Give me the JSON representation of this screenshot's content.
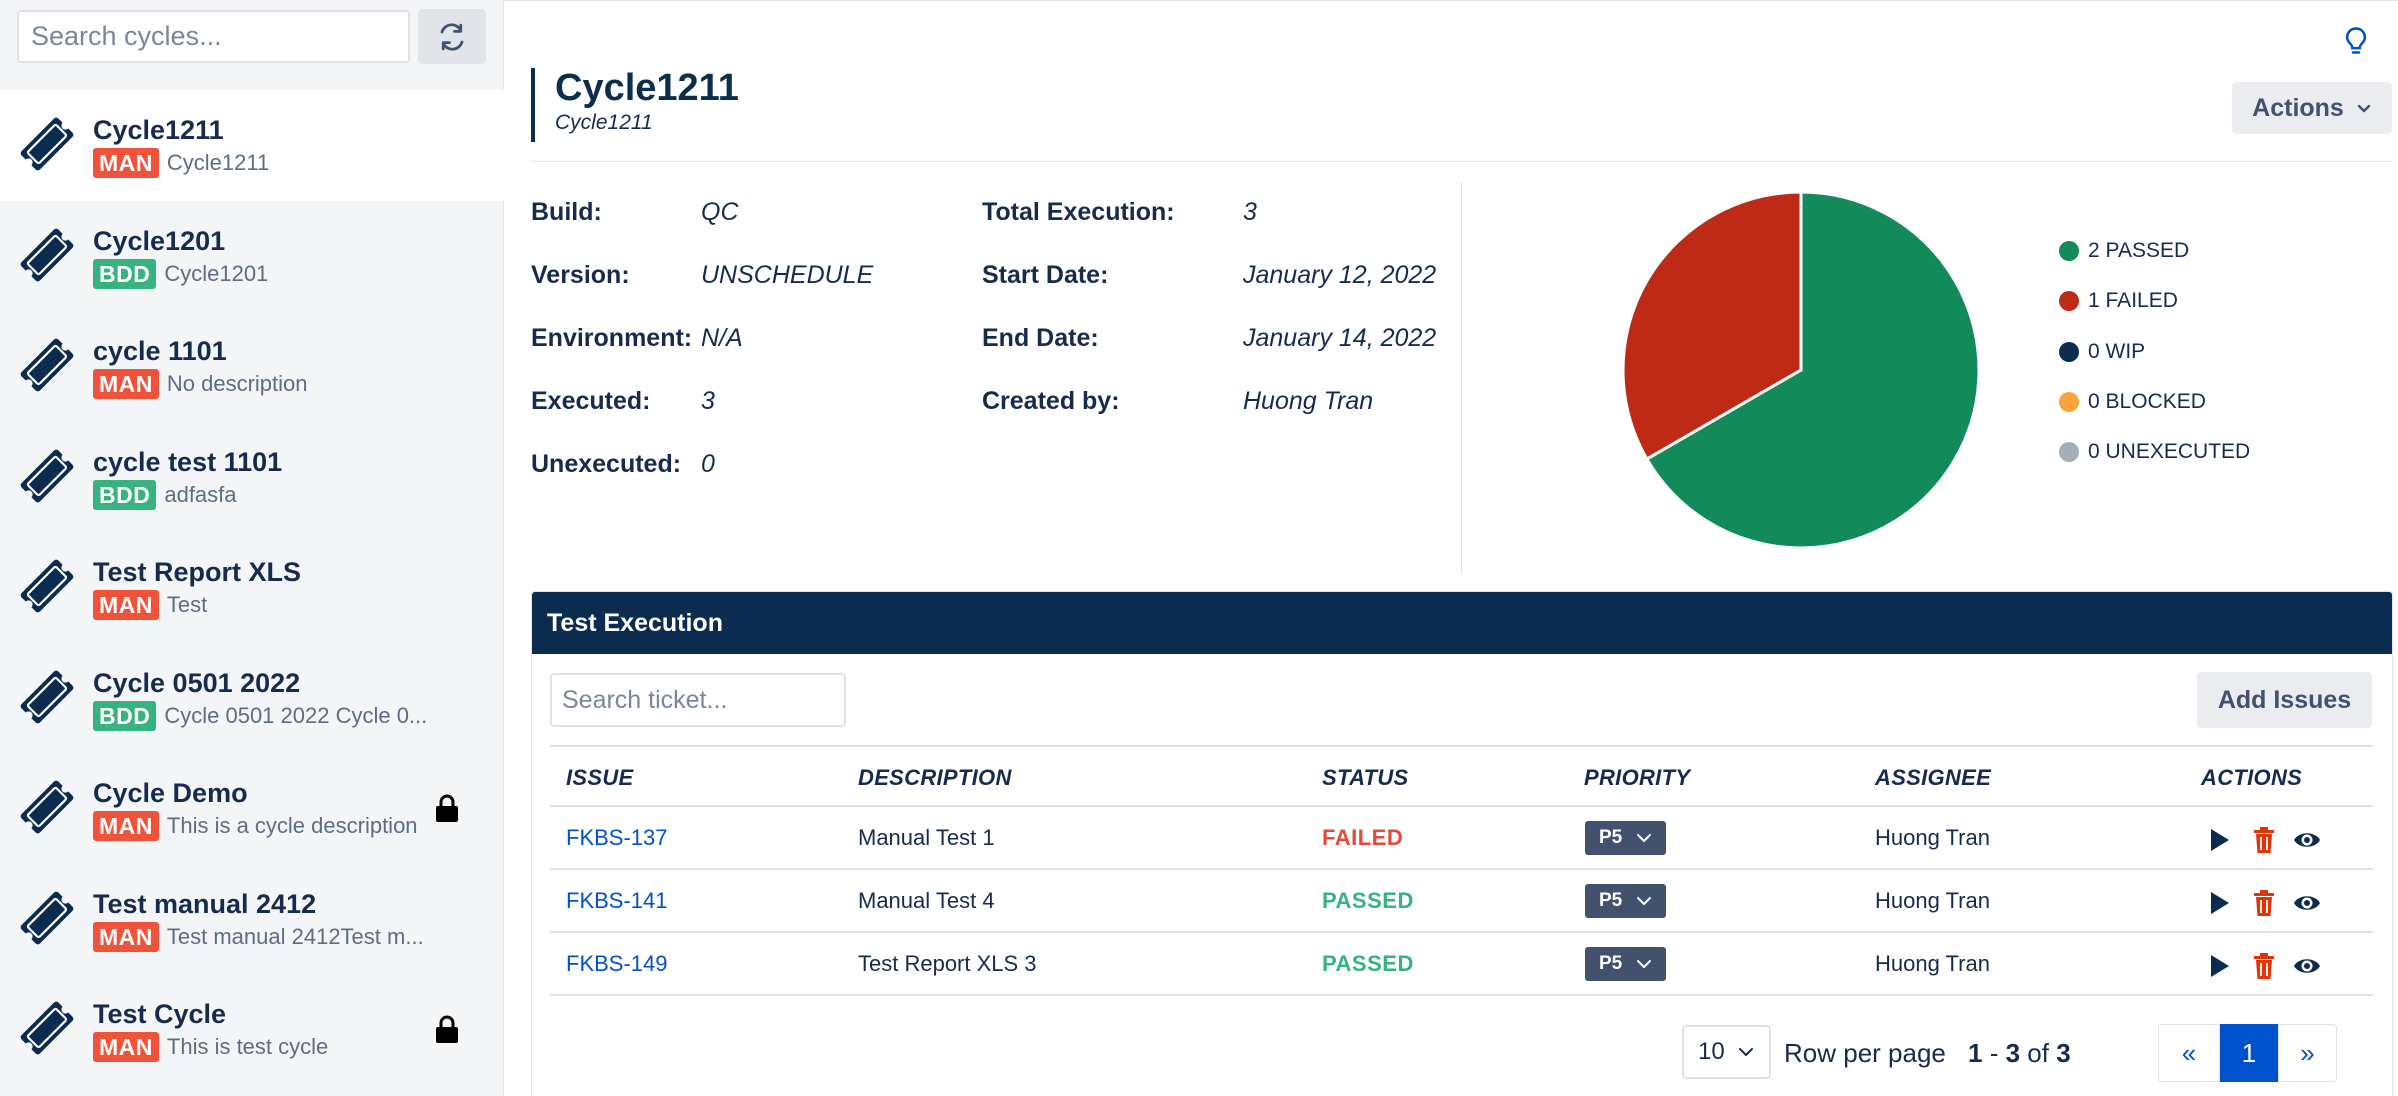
{
  "sidebar": {
    "search_placeholder": "Search cycles...",
    "refresh_icon": "refresh-icon",
    "items": [
      {
        "name": "Cycle1211",
        "type": "MAN",
        "desc": "Cycle1211",
        "locked": false,
        "active": true
      },
      {
        "name": "Cycle1201",
        "type": "BDD",
        "desc": "Cycle1201",
        "locked": false,
        "active": false
      },
      {
        "name": "cycle 1101",
        "type": "MAN",
        "desc": "No description",
        "locked": false,
        "active": false
      },
      {
        "name": "cycle test 1101",
        "type": "BDD",
        "desc": "adfasfa",
        "locked": false,
        "active": false
      },
      {
        "name": "Test Report XLS",
        "type": "MAN",
        "desc": "Test",
        "locked": false,
        "active": false
      },
      {
        "name": "Cycle 0501 2022",
        "type": "BDD",
        "desc": "Cycle 0501 2022 Cycle 0...",
        "locked": false,
        "active": false
      },
      {
        "name": "Cycle Demo",
        "type": "MAN",
        "desc": "This is a cycle description",
        "locked": true,
        "active": false
      },
      {
        "name": "Test manual 2412",
        "type": "MAN",
        "desc": "Test manual 2412Test m...",
        "locked": false,
        "active": false
      },
      {
        "name": "Test Cycle",
        "type": "MAN",
        "desc": "This is test cycle",
        "locked": true,
        "active": false
      }
    ]
  },
  "header": {
    "title": "Cycle1211",
    "subtitle": "Cycle1211",
    "actions_label": "Actions"
  },
  "info": {
    "build_label": "Build:",
    "build_value": "QC",
    "version_label": "Version:",
    "version_value": "UNSCHEDULE",
    "environment_label": "Environment:",
    "environment_value": "N/A",
    "executed_label": "Executed:",
    "executed_value": "3",
    "unexecuted_label": "Unexecuted:",
    "unexecuted_value": "0",
    "total_label": "Total Execution:",
    "total_value": "3",
    "start_label": "Start Date:",
    "start_value": "January 12, 2022",
    "end_label": "End Date:",
    "end_value": "January 14, 2022",
    "created_label": "Created by:",
    "created_value": "Huong Tran"
  },
  "chart_data": {
    "type": "pie",
    "labels": [
      "PASSED",
      "FAILED",
      "WIP",
      "BLOCKED",
      "UNEXECUTED"
    ],
    "values": [
      2,
      1,
      0,
      0,
      0
    ],
    "colors": [
      "#138a5a",
      "#bf2a16",
      "#0b2c4f",
      "#f9a33a",
      "#a5adba"
    ],
    "legend": [
      "2 PASSED",
      "1 FAILED",
      "0 WIP",
      "0 BLOCKED",
      "0 UNEXECUTED"
    ],
    "legend_position": "right"
  },
  "execution": {
    "title": "Test Execution",
    "search_placeholder": "Search ticket...",
    "add_issues_label": "Add Issues",
    "columns": [
      "ISSUE",
      "DESCRIPTION",
      "STATUS",
      "PRIORITY",
      "ASSIGNEE",
      "ACTIONS"
    ],
    "rows": [
      {
        "issue": "FKBS-137",
        "description": "Manual Test 1",
        "status": "FAILED",
        "status_color": "#e5493a",
        "priority": "P5",
        "assignee": "Huong Tran"
      },
      {
        "issue": "FKBS-141",
        "description": "Manual Test 4",
        "status": "PASSED",
        "status_color": "#36b37e",
        "priority": "P5",
        "assignee": "Huong Tran"
      },
      {
        "issue": "FKBS-149",
        "description": "Test Report XLS 3",
        "status": "PASSED",
        "status_color": "#36b37e",
        "priority": "P5",
        "assignee": "Huong Tran"
      }
    ],
    "pagination": {
      "rows_per_page": "10",
      "rows_per_page_label": "Row per page",
      "range_start": "1",
      "range_end": "3",
      "total": "3",
      "prev": "«",
      "current": "1",
      "next": "»"
    }
  },
  "colors": {
    "brand_dark": "#0b2c4f",
    "man_badge": "#f0533a",
    "bdd_badge": "#36b37e",
    "link": "#0052cc",
    "delete": "#de350b"
  }
}
